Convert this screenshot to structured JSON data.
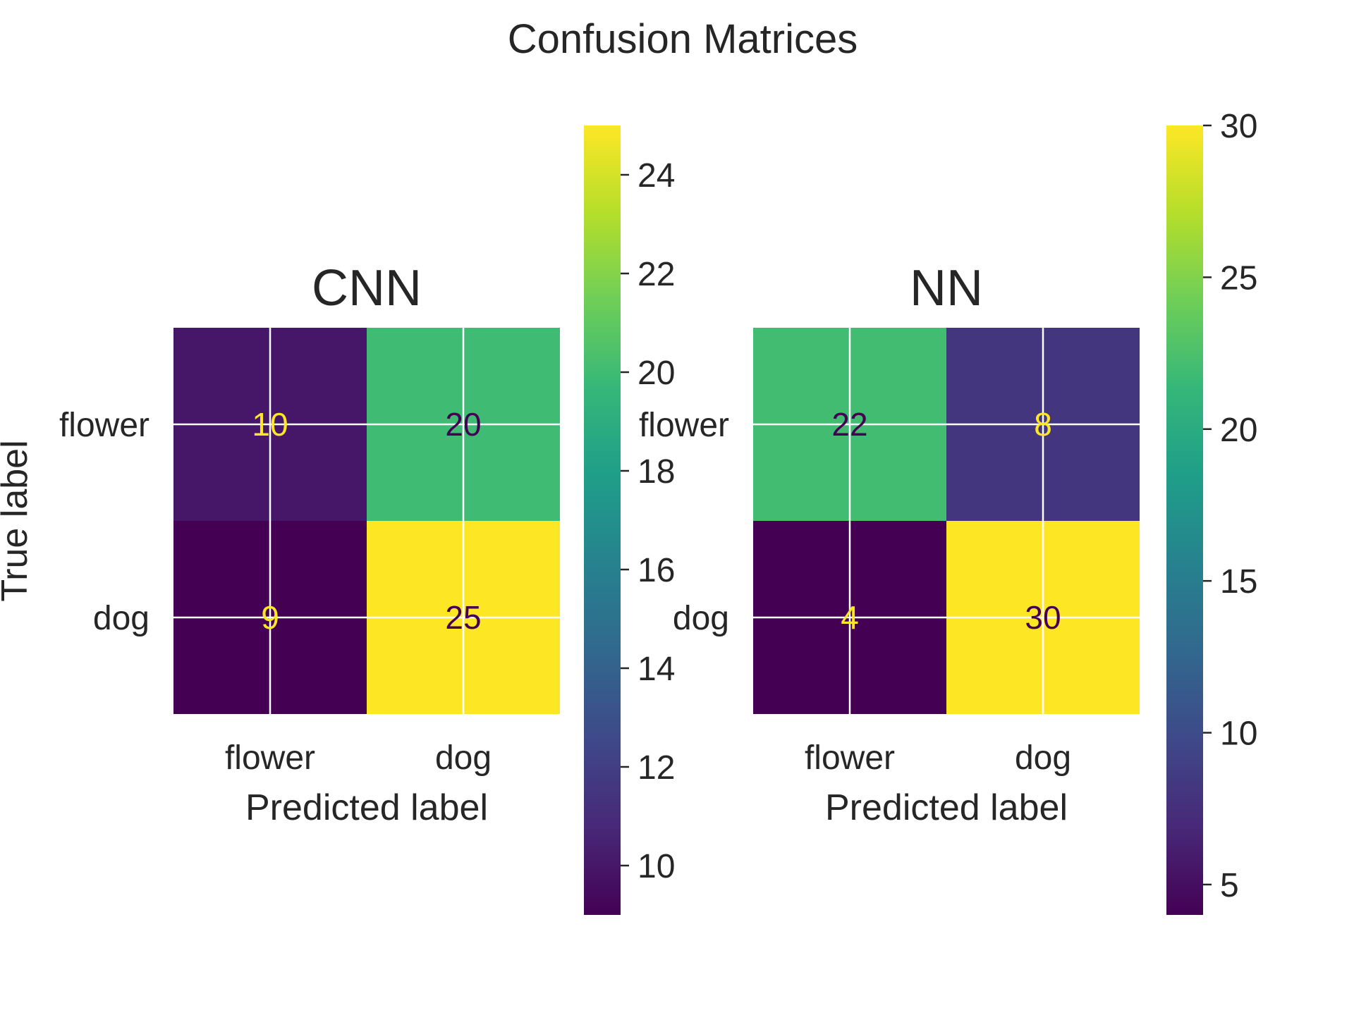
{
  "figure": {
    "suptitle": "Confusion Matrices"
  },
  "chart_data": [
    {
      "type": "heatmap",
      "title": "CNN",
      "xlabel": "Predicted label",
      "ylabel": "True label",
      "x_categories": [
        "flower",
        "dog"
      ],
      "y_categories": [
        "flower",
        "dog"
      ],
      "values": [
        [
          10,
          20
        ],
        [
          9,
          25
        ]
      ],
      "colormap": "viridis",
      "vmin": 9,
      "vmax": 25,
      "colorbar_ticks": [
        10,
        12,
        14,
        16,
        18,
        20,
        22,
        24
      ],
      "grid": true
    },
    {
      "type": "heatmap",
      "title": "NN",
      "xlabel": "Predicted label",
      "ylabel": "",
      "x_categories": [
        "flower",
        "dog"
      ],
      "y_categories": [
        "flower",
        "dog"
      ],
      "values": [
        [
          22,
          8
        ],
        [
          4,
          30
        ]
      ],
      "colormap": "viridis",
      "vmin": 4,
      "vmax": 30,
      "colorbar_ticks": [
        5,
        10,
        15,
        20,
        25,
        30
      ],
      "grid": true
    }
  ],
  "colors": {
    "text": "#262626",
    "grid": "#ffffff",
    "viridis": [
      "#440154",
      "#482878",
      "#3e4989",
      "#31688e",
      "#26828e",
      "#1f9e89",
      "#35b779",
      "#6ece58",
      "#b5de2b",
      "#fde725"
    ]
  }
}
